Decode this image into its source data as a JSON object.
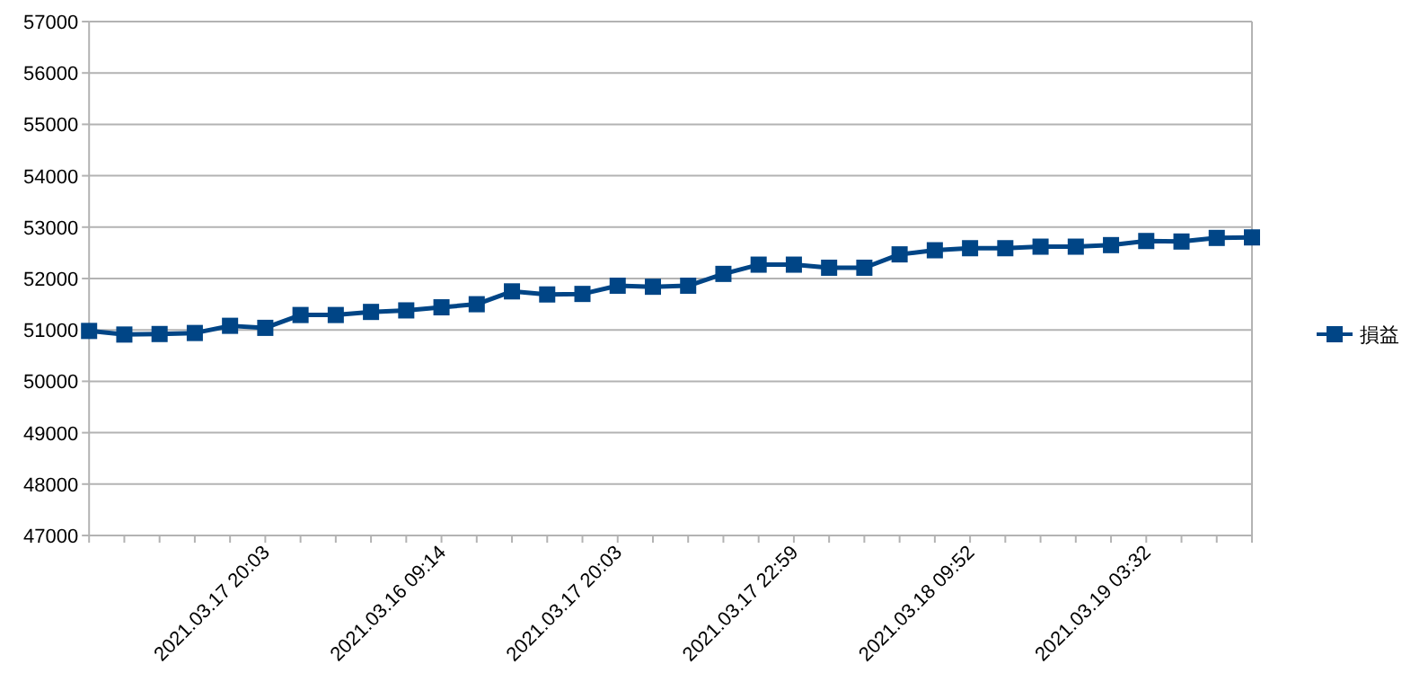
{
  "chart_data": {
    "type": "line",
    "categories": [
      null,
      null,
      null,
      null,
      null,
      "2021.03.17 20:03",
      null,
      null,
      null,
      null,
      "2021.03.16 09:14",
      null,
      null,
      null,
      null,
      "2021.03.17 20:03",
      null,
      null,
      null,
      null,
      "2021.03.17 22:59",
      null,
      null,
      null,
      null,
      "2021.03.18 09:52",
      null,
      null,
      null,
      null,
      "2021.03.19 03:32",
      null,
      null,
      null
    ],
    "series": [
      {
        "name": "損益",
        "color": "#004586",
        "values": [
          50980,
          50910,
          50920,
          50940,
          51080,
          51040,
          51290,
          51290,
          51350,
          51380,
          51440,
          51500,
          51750,
          51690,
          51700,
          51860,
          51840,
          51860,
          52090,
          52270,
          52270,
          52210,
          52210,
          52470,
          52550,
          52590,
          52590,
          52620,
          52620,
          52650,
          52730,
          52720,
          52790,
          52800
        ]
      }
    ],
    "ylim": [
      47000,
      57000
    ],
    "yticks": [
      47000,
      48000,
      49000,
      50000,
      51000,
      52000,
      53000,
      54000,
      55000,
      56000,
      57000
    ],
    "grid": "y",
    "legend": "right",
    "marker": "square",
    "line_style": "solid"
  }
}
